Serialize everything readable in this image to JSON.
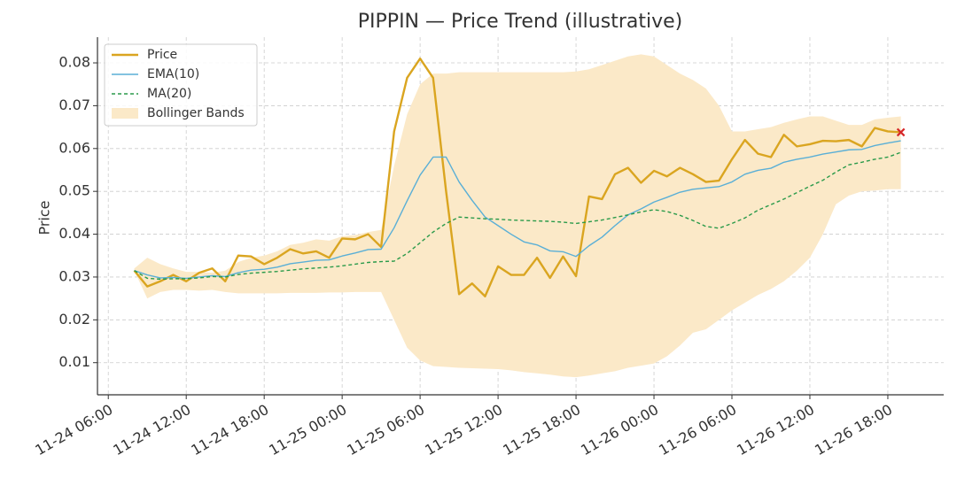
{
  "chart_data": {
    "type": "line",
    "title": "PIPPIN — Price Trend (illustrative)",
    "y_label": "Price",
    "x": [
      "11-24 08:00",
      "11-24 09:00",
      "11-24 10:00",
      "11-24 11:00",
      "11-24 12:00",
      "11-24 13:00",
      "11-24 14:00",
      "11-24 15:00",
      "11-24 16:00",
      "11-24 17:00",
      "11-24 18:00",
      "11-24 19:00",
      "11-24 20:00",
      "11-24 21:00",
      "11-24 22:00",
      "11-24 23:00",
      "11-25 00:00",
      "11-25 01:00",
      "11-25 02:00",
      "11-25 03:00",
      "11-25 04:00",
      "11-25 05:00",
      "11-25 06:00",
      "11-25 07:00",
      "11-25 08:00",
      "11-25 09:00",
      "11-25 10:00",
      "11-25 11:00",
      "11-25 12:00",
      "11-25 13:00",
      "11-25 14:00",
      "11-25 15:00",
      "11-25 16:00",
      "11-25 17:00",
      "11-25 18:00",
      "11-25 19:00",
      "11-25 20:00",
      "11-25 21:00",
      "11-25 22:00",
      "11-25 23:00",
      "11-26 00:00",
      "11-26 01:00",
      "11-26 02:00",
      "11-26 03:00",
      "11-26 04:00",
      "11-26 05:00",
      "11-26 06:00",
      "11-26 07:00",
      "11-26 08:00",
      "11-26 09:00",
      "11-26 10:00",
      "11-26 11:00",
      "11-26 12:00",
      "11-26 13:00",
      "11-26 14:00",
      "11-26 15:00",
      "11-26 16:00",
      "11-26 17:00",
      "11-26 18:00",
      "11-26 19:00"
    ],
    "series": [
      {
        "name": "Price",
        "color": "#daa520",
        "width": 2.4,
        "dash": false,
        "values": [
          0.0315,
          0.0278,
          0.029,
          0.0305,
          0.029,
          0.031,
          0.032,
          0.029,
          0.035,
          0.0348,
          0.033,
          0.0345,
          0.0365,
          0.0355,
          0.036,
          0.0345,
          0.039,
          0.0388,
          0.04,
          0.037,
          0.064,
          0.0765,
          0.081,
          0.0765,
          0.05,
          0.026,
          0.0285,
          0.0255,
          0.0325,
          0.0305,
          0.0305,
          0.0345,
          0.0298,
          0.0348,
          0.0302,
          0.0488,
          0.0482,
          0.054,
          0.0555,
          0.052,
          0.0548,
          0.0535,
          0.0555,
          0.054,
          0.0522,
          0.0525,
          0.0575,
          0.062,
          0.0588,
          0.058,
          0.0632,
          0.0605,
          0.061,
          0.0618,
          0.0617,
          0.062,
          0.0605,
          0.0648,
          0.064,
          0.0638
        ]
      },
      {
        "name": "EMA(10)",
        "color": "#5aafd6",
        "width": 1.4,
        "dash": false,
        "values": [
          0.0315,
          0.0305,
          0.0298,
          0.0299,
          0.0297,
          0.03,
          0.0303,
          0.0301,
          0.031,
          0.0316,
          0.0318,
          0.0323,
          0.0331,
          0.0335,
          0.0339,
          0.034,
          0.0349,
          0.0356,
          0.0364,
          0.0365,
          0.0415,
          0.0478,
          0.0538,
          0.058,
          0.058,
          0.0522,
          0.0479,
          0.044,
          0.042,
          0.04,
          0.0382,
          0.0375,
          0.0361,
          0.0359,
          0.0348,
          0.0373,
          0.0393,
          0.042,
          0.0445,
          0.0459,
          0.0475,
          0.0486,
          0.0498,
          0.0505,
          0.0508,
          0.0511,
          0.0522,
          0.054,
          0.0549,
          0.0554,
          0.0568,
          0.0575,
          0.058,
          0.0587,
          0.0592,
          0.0597,
          0.0598,
          0.0607,
          0.0613,
          0.0618
        ]
      },
      {
        "name": "MA(20)",
        "color": "#2a9a4a",
        "width": 1.4,
        "dash": true,
        "values": [
          0.0315,
          0.0297,
          0.0295,
          0.0296,
          0.0296,
          0.0298,
          0.0301,
          0.03,
          0.0306,
          0.0309,
          0.0311,
          0.0313,
          0.0316,
          0.0319,
          0.0321,
          0.0323,
          0.0326,
          0.033,
          0.0334,
          0.0336,
          0.0337,
          0.0355,
          0.038,
          0.0405,
          0.0425,
          0.044,
          0.0438,
          0.0436,
          0.0435,
          0.0433,
          0.0432,
          0.0431,
          0.043,
          0.0428,
          0.0425,
          0.0429,
          0.0433,
          0.0439,
          0.0445,
          0.0452,
          0.0457,
          0.0453,
          0.0444,
          0.0432,
          0.0418,
          0.0414,
          0.0425,
          0.0438,
          0.0456,
          0.0469,
          0.0482,
          0.0497,
          0.0512,
          0.0526,
          0.0545,
          0.0562,
          0.0568,
          0.0575,
          0.058,
          0.0591
        ]
      }
    ],
    "bands": {
      "name": "Bollinger Bands",
      "color": "#fbe9c8",
      "upper": [
        0.032,
        0.0345,
        0.033,
        0.032,
        0.0312,
        0.0312,
        0.031,
        0.0315,
        0.0335,
        0.0345,
        0.035,
        0.036,
        0.0375,
        0.038,
        0.0388,
        0.0385,
        0.0395,
        0.0398,
        0.0405,
        0.041,
        0.056,
        0.068,
        0.075,
        0.0775,
        0.0775,
        0.0778,
        0.0778,
        0.0778,
        0.0778,
        0.0778,
        0.0778,
        0.0778,
        0.0778,
        0.0778,
        0.078,
        0.0785,
        0.0795,
        0.0805,
        0.0815,
        0.082,
        0.0815,
        0.0795,
        0.0775,
        0.076,
        0.074,
        0.07,
        0.064,
        0.064,
        0.0645,
        0.065,
        0.066,
        0.0668,
        0.0675,
        0.0675,
        0.0665,
        0.0655,
        0.0655,
        0.0668,
        0.0672,
        0.0675
      ],
      "lower": [
        0.0315,
        0.025,
        0.0265,
        0.027,
        0.027,
        0.0268,
        0.027,
        0.0265,
        0.0262,
        0.0262,
        0.0262,
        0.0262,
        0.0263,
        0.0263,
        0.0263,
        0.0264,
        0.0264,
        0.0265,
        0.0265,
        0.0265,
        0.02,
        0.0135,
        0.0105,
        0.0092,
        0.009,
        0.0088,
        0.0087,
        0.0086,
        0.0085,
        0.0082,
        0.0078,
        0.0075,
        0.0072,
        0.0068,
        0.0066,
        0.007,
        0.0075,
        0.008,
        0.0088,
        0.0093,
        0.0098,
        0.0115,
        0.014,
        0.017,
        0.0178,
        0.02,
        0.0222,
        0.024,
        0.0258,
        0.0272,
        0.029,
        0.0315,
        0.0345,
        0.04,
        0.047,
        0.049,
        0.05,
        0.0502,
        0.0505,
        0.0505
      ]
    },
    "last_marker_color": "#d62728",
    "xlim": [
      "11-24 05:10",
      "11-26 22:18"
    ],
    "xticks": [
      "11-24 06:00",
      "11-24 12:00",
      "11-24 18:00",
      "11-25 00:00",
      "11-25 06:00",
      "11-25 12:00",
      "11-25 18:00",
      "11-26 00:00",
      "11-26 06:00",
      "11-26 12:00",
      "11-26 18:00"
    ],
    "ylim": [
      0.0025,
      0.086
    ],
    "yticks": [
      0.01,
      0.02,
      0.03,
      0.04,
      0.05,
      0.06,
      0.07,
      0.08
    ],
    "grid": true,
    "legend": "upper left"
  }
}
